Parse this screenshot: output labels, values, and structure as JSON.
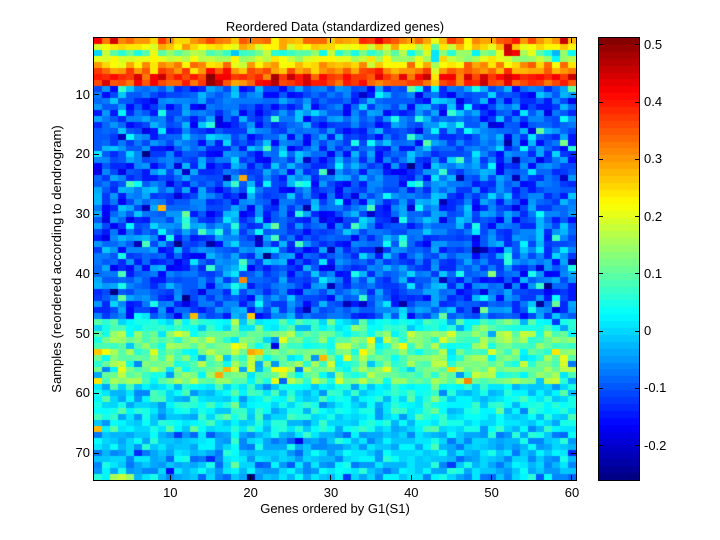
{
  "figure": {
    "background": "#ffffff",
    "frame_color": "#000000",
    "text_color": "#000000"
  },
  "chart_data": {
    "type": "heatmap",
    "title": "Reordered Data (standardized genes)",
    "xlabel": "Genes ordered by G1(S1)",
    "ylabel": "Samples (reordered according to dendrogram)",
    "n_cols": 60,
    "n_rows": 74,
    "x_ticks": [
      10,
      20,
      30,
      40,
      50,
      60
    ],
    "y_ticks": [
      10,
      20,
      30,
      40,
      50,
      60,
      70
    ],
    "colormap": "jet",
    "colormap_levels": 64,
    "value_range": [
      -0.26,
      0.512
    ],
    "colorbar_ticks": [
      0.5,
      0.4,
      0.3,
      0.2,
      0.1,
      0,
      -0.1,
      -0.2
    ],
    "colorbar_side": "right",
    "noise_seed": 20110419,
    "row_bands": [
      {
        "rows": [
          1,
          1
        ],
        "mean": 0.3,
        "spread": 0.06,
        "hi_p": 0.15,
        "hi": 0.1
      },
      {
        "rows": [
          2,
          2
        ],
        "mean": 0.23,
        "spread": 0.05,
        "hi_p": 0.1,
        "hi": 0.08
      },
      {
        "rows": [
          3,
          3
        ],
        "mean": 0.1,
        "spread": 0.08
      },
      {
        "rows": [
          4,
          4
        ],
        "mean": 0.19,
        "spread": 0.05
      },
      {
        "rows": [
          5,
          5
        ],
        "mean": 0.27,
        "spread": 0.06
      },
      {
        "rows": [
          6,
          6
        ],
        "mean": 0.33,
        "spread": 0.06
      },
      {
        "rows": [
          7,
          7
        ],
        "mean": 0.4,
        "spread": 0.06
      },
      {
        "rows": [
          8,
          8
        ],
        "mean": 0.37,
        "spread": 0.06
      },
      {
        "rows": [
          9,
          47
        ],
        "mean": -0.095,
        "spread": 0.06,
        "hi_p": 0.08,
        "hi": 0.11,
        "lo_p": 0.05,
        "lo": 0.08,
        "rare_p": 0.0015,
        "rare_v": 0.27
      },
      {
        "rows": [
          48,
          49
        ],
        "mean": 0.05,
        "spread": 0.06
      },
      {
        "rows": [
          50,
          58
        ],
        "mean": 0.11,
        "spread": 0.065,
        "hi_p": 0.08,
        "hi": 0.1,
        "lo_p": 0.1,
        "lo": 0.1,
        "rare_p": 0.003,
        "rare_v": 0.27
      },
      {
        "rows": [
          59,
          66
        ],
        "mean": 0.02,
        "spread": 0.055
      },
      {
        "rows": [
          67,
          74
        ],
        "mean": -0.015,
        "spread": 0.055,
        "lo_p": 0.04,
        "lo": 0.07
      }
    ],
    "col_stripes": [
      {
        "col": 43,
        "rows": [
          1,
          8
        ],
        "delta": -0.12
      },
      {
        "col": 43,
        "rows": [
          9,
          74
        ],
        "delta": 0.04
      },
      {
        "col": 18,
        "rows": [
          9,
          47
        ],
        "delta": 0.03
      },
      {
        "col": 18,
        "rows": [
          48,
          74
        ],
        "delta": 0.05
      }
    ],
    "outlier_cells": [
      [
        1,
        1,
        0.42
      ],
      [
        1,
        3,
        0.44
      ],
      [
        2,
        52,
        0.46
      ],
      [
        3,
        1,
        0.0
      ],
      [
        3,
        52,
        0.45
      ],
      [
        3,
        53,
        0.42
      ],
      [
        3,
        58,
        -0.02
      ],
      [
        4,
        58,
        0.02
      ],
      [
        7,
        15,
        0.5
      ],
      [
        8,
        15,
        0.49
      ],
      [
        8,
        16,
        0.46
      ],
      [
        8,
        23,
        0.47
      ],
      [
        46,
        27,
        -0.22
      ],
      [
        47,
        13,
        0.28
      ],
      [
        47,
        20,
        0.27
      ],
      [
        48,
        58,
        -0.12
      ],
      [
        52,
        23,
        -0.18
      ],
      [
        66,
        1,
        0.28
      ],
      [
        74,
        3,
        0.16
      ],
      [
        74,
        4,
        0.18
      ],
      [
        74,
        5,
        0.14
      ],
      [
        74,
        20,
        -0.25
      ]
    ]
  }
}
